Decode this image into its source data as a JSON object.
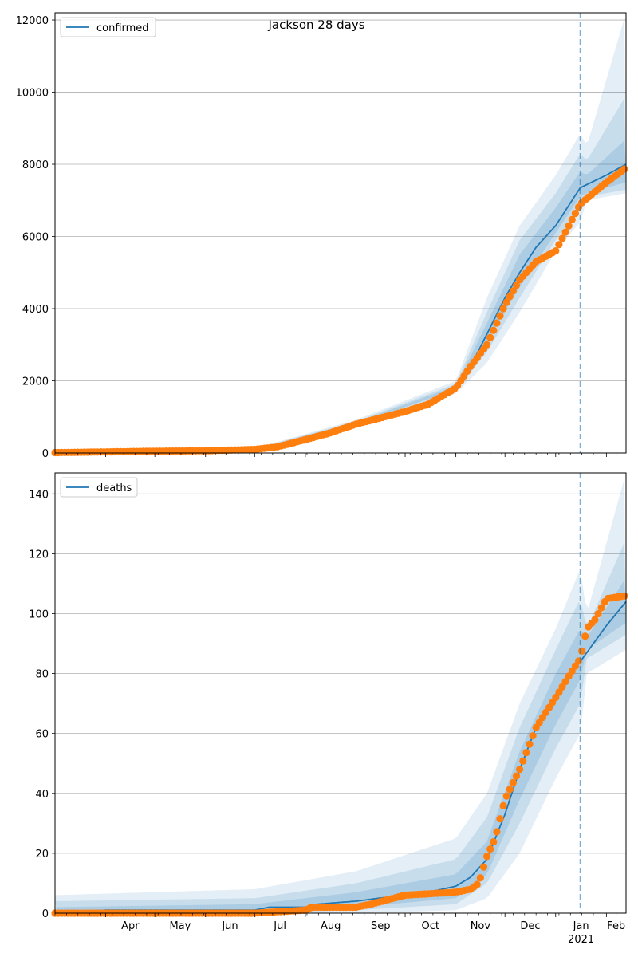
{
  "figure": {
    "title": "Jackson 28 days"
  },
  "colors": {
    "line": "#1f77b4",
    "observed": "#ff7f0e",
    "band": "#1f77b4",
    "grid": "#b0b0b0",
    "marker": "#1f77b4"
  },
  "chart_data": [
    {
      "type": "line",
      "legend": "confirmed",
      "legend_position": "top-left",
      "grid": "y",
      "xlim": [
        "2020-03-01",
        "2021-02-13"
      ],
      "ylim": [
        0,
        12200
      ],
      "yticks": [
        0,
        2000,
        4000,
        6000,
        8000,
        10000,
        12000
      ],
      "forecast_start": "2021-01-16",
      "model": {
        "x": [
          "2020-03-01",
          "2020-04-01",
          "2020-05-01",
          "2020-06-01",
          "2020-07-01",
          "2020-07-15",
          "2020-08-01",
          "2020-08-15",
          "2020-09-01",
          "2020-09-15",
          "2020-10-01",
          "2020-10-15",
          "2020-11-01",
          "2020-11-10",
          "2020-11-20",
          "2020-12-01",
          "2020-12-10",
          "2020-12-20",
          "2021-01-01",
          "2021-01-16",
          "2021-02-01",
          "2021-02-13"
        ],
        "y": [
          20,
          40,
          60,
          70,
          100,
          180,
          380,
          550,
          830,
          1000,
          1200,
          1400,
          1800,
          2400,
          3300,
          4300,
          5000,
          5700,
          6300,
          7350,
          7700,
          8000
        ]
      },
      "observed": {
        "x": [
          "2020-03-01",
          "2020-04-01",
          "2020-05-01",
          "2020-06-01",
          "2020-07-01",
          "2020-07-15",
          "2020-08-01",
          "2020-08-15",
          "2020-09-01",
          "2020-09-15",
          "2020-10-01",
          "2020-10-15",
          "2020-11-01",
          "2020-11-10",
          "2020-11-20",
          "2020-12-01",
          "2020-12-10",
          "2020-12-20",
          "2021-01-01",
          "2021-01-16",
          "2021-02-01",
          "2021-02-13"
        ],
        "y": [
          10,
          30,
          50,
          60,
          100,
          170,
          370,
          540,
          800,
          960,
          1150,
          1350,
          1800,
          2400,
          3000,
          4100,
          4800,
          5300,
          5600,
          6900,
          7500,
          7900
        ]
      },
      "bands": [
        {
          "x": [
            "2020-03-01",
            "2020-07-01",
            "2020-09-01",
            "2020-11-01",
            "2020-11-20",
            "2020-12-10",
            "2021-01-01",
            "2021-01-16",
            "2021-01-20",
            "2021-02-13"
          ],
          "lower": [
            10,
            80,
            750,
            1650,
            2500,
            3900,
            5600,
            6400,
            7000,
            7200
          ],
          "upper": [
            30,
            130,
            920,
            2000,
            4300,
            6300,
            7700,
            8850,
            8500,
            12200
          ]
        },
        {
          "x": [
            "2020-03-01",
            "2020-07-01",
            "2020-09-01",
            "2020-11-01",
            "2020-11-20",
            "2020-12-10",
            "2021-01-01",
            "2021-01-16",
            "2021-01-20",
            "2021-02-13"
          ],
          "lower": [
            15,
            90,
            780,
            1720,
            2800,
            4300,
            5900,
            6800,
            7100,
            7300
          ],
          "upper": [
            25,
            115,
            880,
            1920,
            3900,
            5900,
            7200,
            8300,
            8100,
            9900
          ]
        },
        {
          "x": [
            "2020-03-01",
            "2020-07-01",
            "2020-09-01",
            "2020-11-01",
            "2020-11-20",
            "2020-12-10",
            "2021-01-01",
            "2021-01-16",
            "2021-01-20",
            "2021-02-13"
          ],
          "lower": [
            18,
            95,
            805,
            1760,
            3100,
            4600,
            6100,
            7100,
            7200,
            7500
          ],
          "upper": [
            22,
            105,
            850,
            1860,
            3600,
            5500,
            6800,
            7800,
            7700,
            8700
          ]
        }
      ]
    },
    {
      "type": "line",
      "legend": "deaths",
      "legend_position": "top-left",
      "grid": "y",
      "xlim": [
        "2020-03-01",
        "2021-02-13"
      ],
      "ylim": [
        0,
        147
      ],
      "yticks": [
        0,
        20,
        40,
        60,
        80,
        100,
        120,
        140
      ],
      "forecast_start": "2021-01-16",
      "model": {
        "x": [
          "2020-03-01",
          "2020-04-01",
          "2020-07-01",
          "2020-07-10",
          "2020-08-01",
          "2020-08-08",
          "2020-09-01",
          "2020-09-15",
          "2020-10-01",
          "2020-10-15",
          "2020-11-01",
          "2020-11-10",
          "2020-11-20",
          "2020-12-01",
          "2020-12-10",
          "2020-12-20",
          "2021-01-01",
          "2021-01-16",
          "2021-02-01",
          "2021-02-13"
        ],
        "y": [
          0,
          1,
          1,
          2,
          2,
          3,
          4,
          5,
          6,
          7,
          9,
          12,
          18,
          33,
          48,
          62,
          73,
          84,
          96,
          104
        ]
      },
      "observed": {
        "x": [
          "2020-03-01",
          "2020-04-01",
          "2020-07-01",
          "2020-08-01",
          "2020-08-05",
          "2020-09-01",
          "2020-09-10",
          "2020-10-01",
          "2020-11-01",
          "2020-11-10",
          "2020-11-15",
          "2020-11-20",
          "2020-11-25",
          "2020-12-01",
          "2020-12-10",
          "2020-12-20",
          "2021-01-01",
          "2021-01-10",
          "2021-01-16",
          "2021-01-20",
          "2021-01-25",
          "2021-02-01",
          "2021-02-13"
        ],
        "y": [
          0,
          0,
          0,
          1,
          2,
          2,
          3,
          6,
          7,
          8,
          10,
          19,
          25,
          38,
          48,
          62,
          72,
          80,
          85,
          95,
          98,
          105,
          106
        ]
      },
      "bands": [
        {
          "x": [
            "2020-03-01",
            "2020-07-01",
            "2020-09-01",
            "2020-11-01",
            "2020-11-20",
            "2020-12-10",
            "2021-01-01",
            "2021-01-16",
            "2021-01-20",
            "2021-02-13"
          ],
          "lower": [
            0,
            0,
            0,
            1,
            5,
            20,
            45,
            60,
            80,
            88
          ],
          "upper": [
            6,
            8,
            14,
            25,
            40,
            70,
            95,
            115,
            100,
            147
          ]
        },
        {
          "x": [
            "2020-03-01",
            "2020-07-01",
            "2020-09-01",
            "2020-11-01",
            "2020-11-20",
            "2020-12-10",
            "2021-01-01",
            "2021-01-16",
            "2021-01-20",
            "2021-02-13"
          ],
          "lower": [
            0,
            0,
            1,
            3,
            10,
            30,
            55,
            70,
            85,
            93
          ],
          "upper": [
            4,
            5,
            10,
            18,
            32,
            62,
            88,
            105,
            95,
            125
          ]
        },
        {
          "x": [
            "2020-03-01",
            "2020-07-01",
            "2020-09-01",
            "2020-11-01",
            "2020-11-20",
            "2020-12-10",
            "2021-01-01",
            "2021-01-16",
            "2021-01-20",
            "2021-02-13"
          ],
          "lower": [
            0,
            0,
            2,
            5,
            13,
            38,
            63,
            78,
            88,
            97
          ],
          "upper": [
            2,
            3,
            7,
            13,
            24,
            54,
            80,
            95,
            92,
            112
          ]
        }
      ]
    }
  ],
  "x_axis": {
    "month_ticks": [
      "2020-04-01",
      "2020-05-01",
      "2020-06-01",
      "2020-07-01",
      "2020-08-01",
      "2020-09-01",
      "2020-10-01",
      "2020-11-01",
      "2020-12-01",
      "2021-01-01",
      "2021-02-01"
    ],
    "month_labels": [
      "Apr",
      "May",
      "Jun",
      "Jul",
      "Aug",
      "Sep",
      "Oct",
      "Nov",
      "Dec",
      "Jan",
      "Feb"
    ],
    "year_label": "2021",
    "year_label_at": "2021-01-01"
  }
}
